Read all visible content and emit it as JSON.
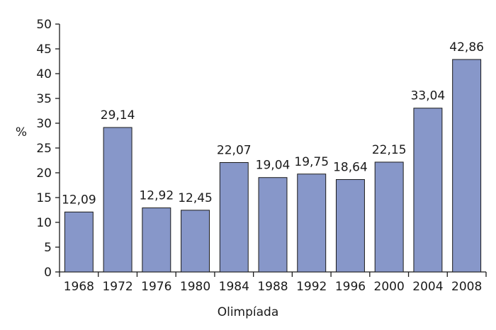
{
  "chart_data": {
    "type": "bar",
    "categories": [
      "1968",
      "1972",
      "1976",
      "1980",
      "1984",
      "1988",
      "1992",
      "1996",
      "2000",
      "2004",
      "2008"
    ],
    "values": [
      12.09,
      29.14,
      12.92,
      12.45,
      22.07,
      19.04,
      19.75,
      18.64,
      22.15,
      33.04,
      42.86
    ],
    "value_labels": [
      "12,09",
      "29,14",
      "12,92",
      "12,45",
      "22,07",
      "19,04",
      "19,75",
      "18,64",
      "22,15",
      "33,04",
      "42,86"
    ],
    "title": "",
    "xlabel": "Olimpíada",
    "ylabel": "%",
    "ylim": [
      0,
      50
    ],
    "yticks": [
      "0",
      "5",
      "10",
      "15",
      "20",
      "25",
      "30",
      "35",
      "40",
      "45",
      "50"
    ],
    "grid": false,
    "legend": "none",
    "colors": {
      "bar": "#8797c9",
      "axis": "#1a1a1a",
      "text": "#1a1a1a"
    }
  }
}
